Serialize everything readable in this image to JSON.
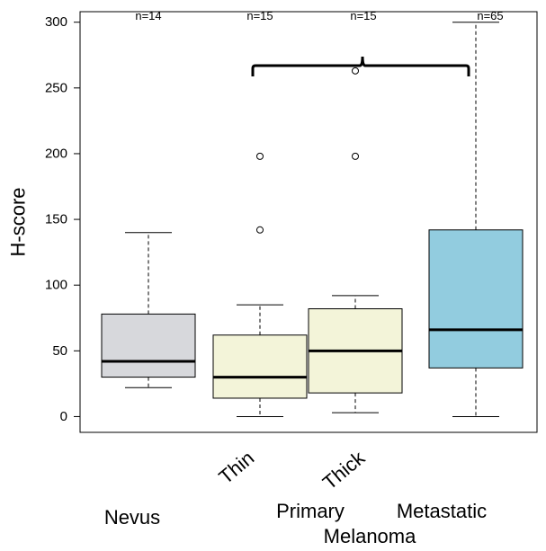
{
  "chart_data": {
    "type": "box",
    "ylabel": "H-score",
    "ylim": [
      -12,
      308
    ],
    "yticks": [
      0,
      50,
      100,
      150,
      200,
      250,
      300
    ],
    "groups": [
      {
        "label": "Nevus",
        "n_label": "n=14",
        "color": "#d7d8dc",
        "whisker_low": 22,
        "q1": 30,
        "median": 42,
        "q3": 78,
        "whisker_high": 140,
        "outliers": []
      },
      {
        "label": "Thin",
        "n_label": "n=15",
        "color": "#f3f4d9",
        "whisker_low": 0,
        "q1": 14,
        "median": 30,
        "q3": 62,
        "whisker_high": 85,
        "outliers": [
          142,
          198
        ]
      },
      {
        "label": "Thick",
        "n_label": "n=15",
        "color": "#f3f4d9",
        "whisker_low": 3,
        "q1": 18,
        "median": 50,
        "q3": 82,
        "whisker_high": 92,
        "outliers": [
          198,
          263
        ]
      },
      {
        "label": "Metastatic",
        "n_label": "n=65",
        "color": "#92ccdf",
        "whisker_low": 0,
        "q1": 37,
        "median": 66,
        "q3": 142,
        "whisker_high": 300,
        "outliers": []
      }
    ],
    "category_labels": {
      "nevus": "Nevus",
      "primary": "Primary",
      "metastatic": "Metastatic",
      "melanoma": "Melanoma"
    },
    "bracket": {
      "from_group": 1,
      "to_group": 3,
      "y": 267
    }
  }
}
